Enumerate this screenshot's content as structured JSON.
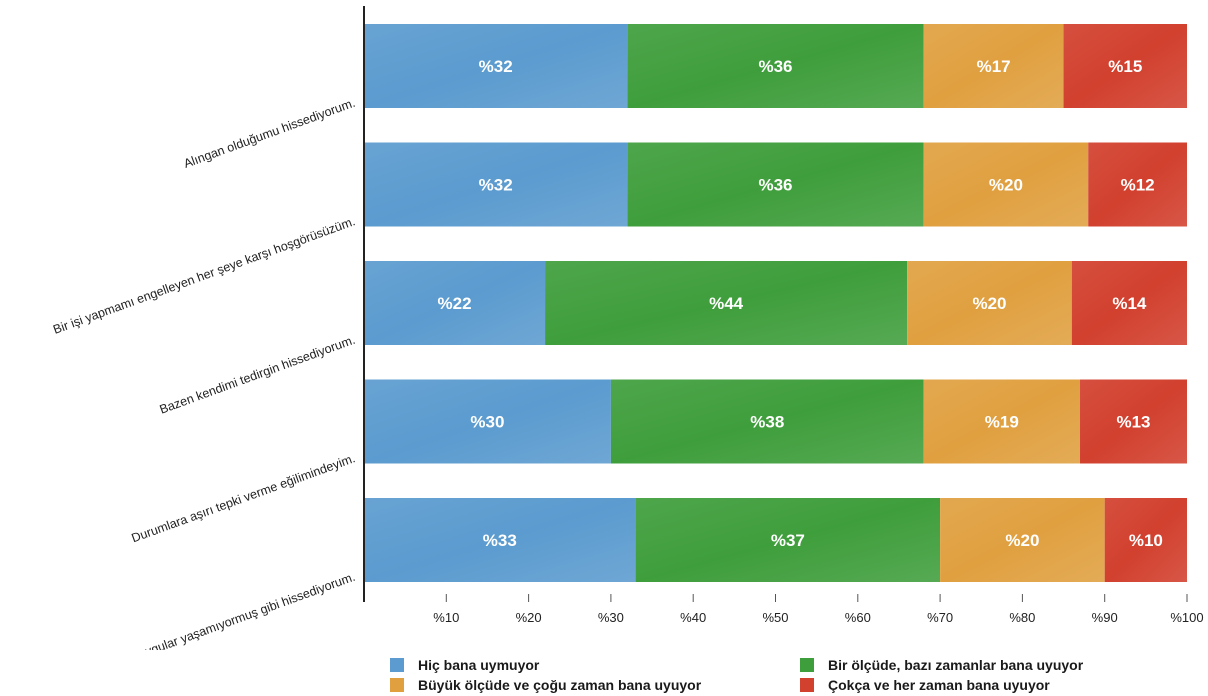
{
  "chart_data": {
    "type": "bar",
    "orientation": "horizontal",
    "stacked": true,
    "title": "",
    "xlabel": "",
    "ylabel": "",
    "xlim": [
      0,
      100
    ],
    "grid": false,
    "legend_position": "bottom",
    "categories": [
      "Alıngan olduğumu hissediyorum.",
      "Bir işi yapmamı engelleyen her şeye karşı hoşgörüsüzüm.",
      "Bazen kendimi tedirgin hissediyorum.",
      "Durumlara aşırı tepki verme eğilimindeyim.",
      "Olumlu duygular yaşamıyormuş gibi hissediyorum."
    ],
    "series": [
      {
        "name": "Hiç bana uymuyor",
        "color": "#5b9bcf",
        "values": [
          32,
          32,
          22,
          30,
          33
        ],
        "labels": [
          "%32",
          "%32",
          "%22",
          "%30",
          "%33"
        ]
      },
      {
        "name": "Bir ölçüde, bazı zamanlar bana uyuyor",
        "color": "#3f9e3c",
        "values": [
          36,
          36,
          44,
          38,
          37
        ],
        "labels": [
          "%36",
          "%36",
          "%44",
          "%38",
          "%37"
        ]
      },
      {
        "name": "Büyük ölçüde ve çoğu zaman bana uyuyor",
        "color": "#e0a040",
        "values": [
          17,
          20,
          20,
          19,
          20
        ],
        "labels": [
          "%17",
          "%20",
          "%20",
          "%19",
          "%20"
        ]
      },
      {
        "name": "Çokça ve her zaman bana uyuyor",
        "color": "#d2402e",
        "values": [
          15,
          12,
          14,
          13,
          10
        ],
        "labels": [
          "%15",
          "%12",
          "%14",
          "%13",
          "%10"
        ]
      }
    ],
    "x_ticks": [
      10,
      20,
      30,
      40,
      50,
      60,
      70,
      80,
      90,
      100
    ],
    "x_tick_labels": [
      "%10",
      "%20",
      "%30",
      "%40",
      "%50",
      "%60",
      "%70",
      "%80",
      "%90",
      "%100"
    ]
  }
}
